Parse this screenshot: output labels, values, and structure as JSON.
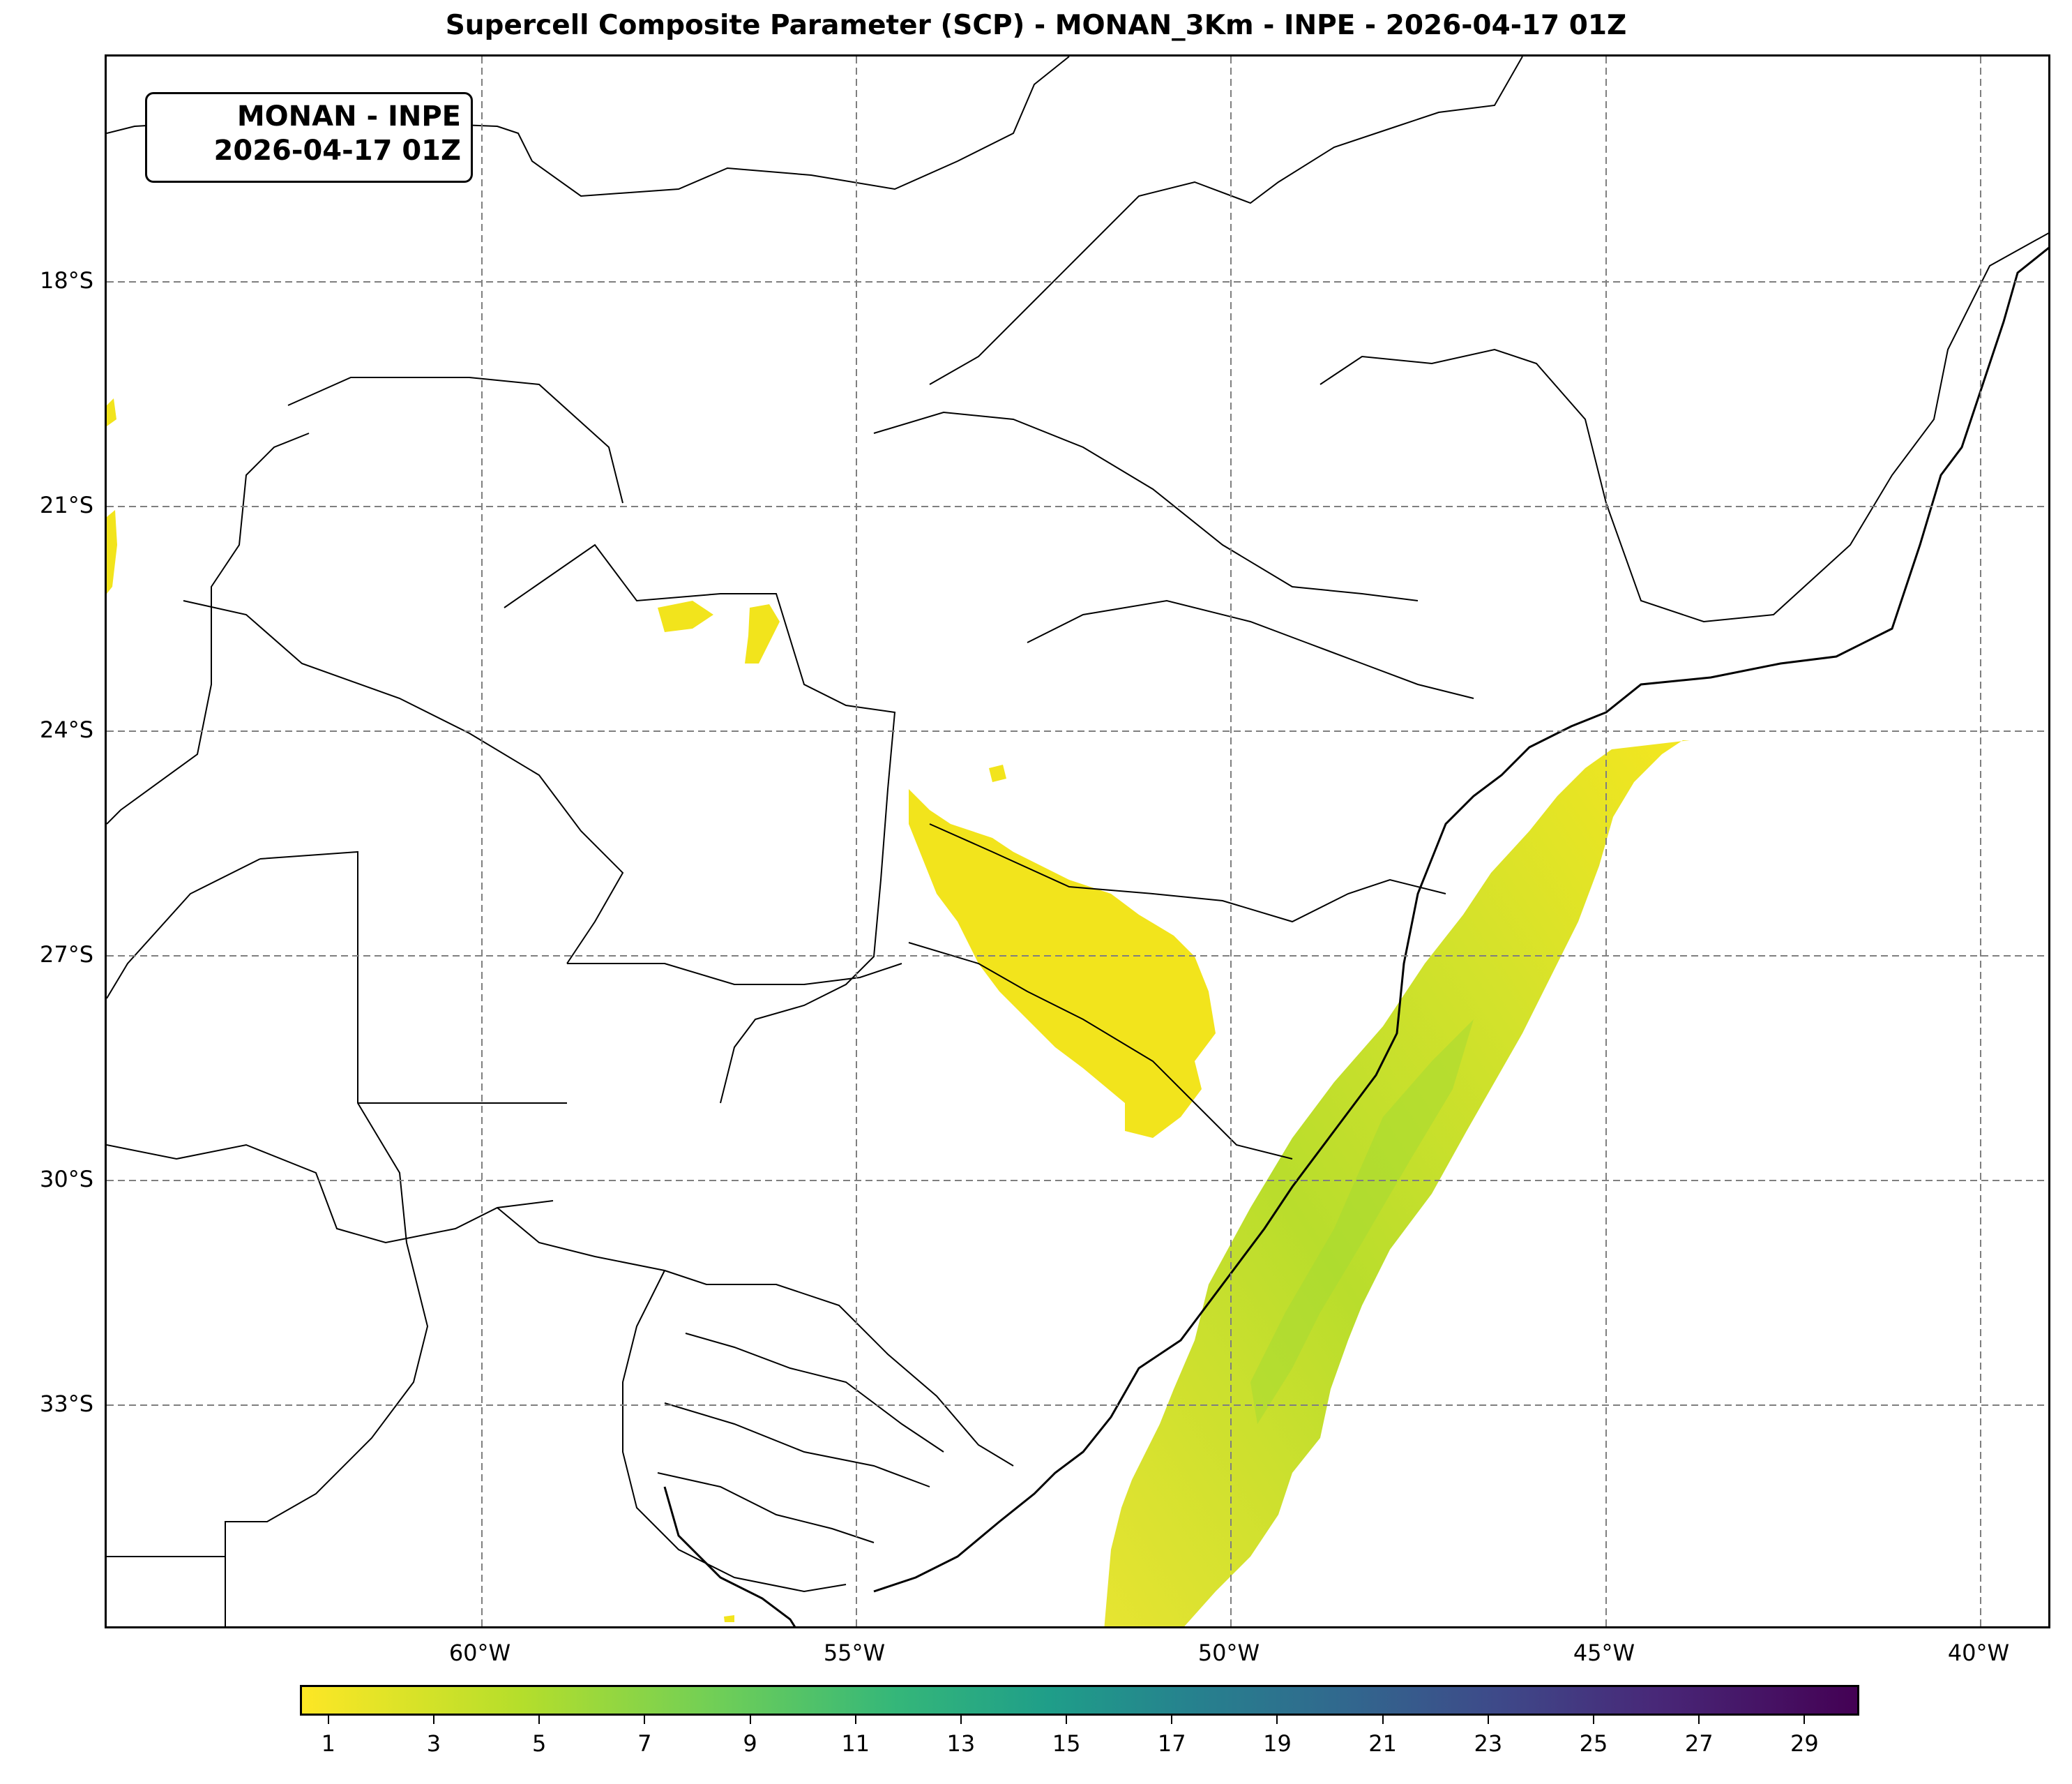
{
  "title": "Supercell Composite Parameter (SCP) - MONAN_3Km - INPE - 2026-04-17 01Z",
  "info_box": {
    "line1": "MONAN - INPE",
    "line2": "2026-04-17 01Z"
  },
  "lat_labels": [
    "18°S",
    "21°S",
    "24°S",
    "27°S",
    "30°S",
    "33°S"
  ],
  "lon_labels": [
    "60°W",
    "55°W",
    "50°W",
    "45°W",
    "40°W"
  ],
  "colorbar": {
    "ticks": [
      "1",
      "3",
      "5",
      "7",
      "9",
      "11",
      "13",
      "15",
      "17",
      "19",
      "21",
      "23",
      "25",
      "27",
      "29"
    ],
    "colormap": "viridis_r",
    "range": [
      0.5,
      30
    ]
  },
  "colors": {
    "low": "#fde725",
    "mid": "#b5de2b",
    "high": "#6ece58",
    "grid": "#7f7f7f"
  }
}
